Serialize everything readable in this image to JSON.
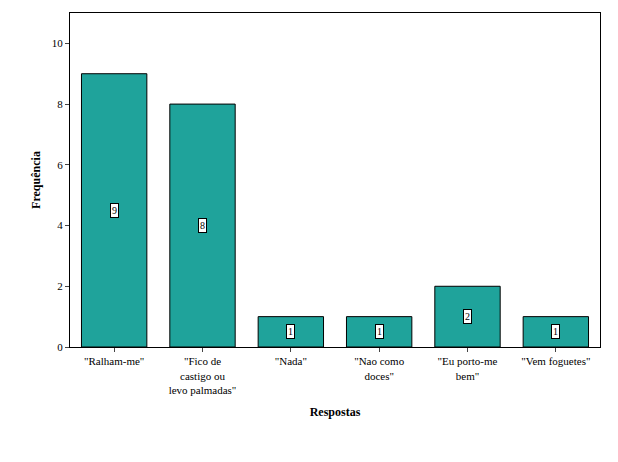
{
  "chart_data": {
    "type": "bar",
    "x_label": "Respostas",
    "y_label": "Frequência",
    "categories": [
      "\"Ralham-me\"",
      "\"Fico de castigo ou levo palmadas\"",
      "\"Nada\"",
      "\"Nao como doces\"",
      "\"Eu porto-me bem\"",
      "\"Vem foguetes\""
    ],
    "values": [
      9,
      8,
      1,
      1,
      2,
      1
    ],
    "color": "#1fa39b",
    "ylim": [
      0,
      11
    ],
    "yticks": [
      0,
      2,
      4,
      6,
      8,
      10
    ],
    "grid": false,
    "data_labels": true
  }
}
